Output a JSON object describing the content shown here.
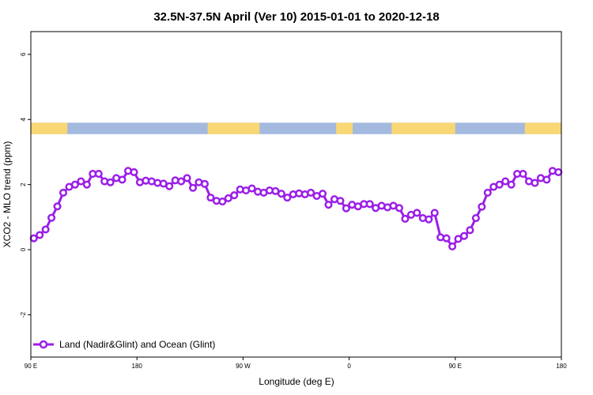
{
  "chart_data": {
    "type": "line",
    "title": "32.5N-37.5N April (Ver 10)   2015-01-01 to 2020-12-18",
    "xlabel": "Longitude (deg E)",
    "ylabel": "XCO2 - MLO trend (ppm)",
    "x_ticks": [
      {
        "value": 90,
        "label": "90 E"
      },
      {
        "value": 180,
        "label": "180"
      },
      {
        "value": 270,
        "label": "90 W"
      },
      {
        "value": 360,
        "label": "0"
      },
      {
        "value": 450,
        "label": "90 E"
      },
      {
        "value": 540,
        "label": "180"
      }
    ],
    "y_ticks": [
      {
        "value": -2,
        "label": "-2"
      },
      {
        "value": 0,
        "label": "0"
      },
      {
        "value": 2,
        "label": "2"
      },
      {
        "value": 4,
        "label": "4"
      },
      {
        "value": 6,
        "label": "6"
      }
    ],
    "xlim": [
      90,
      540
    ],
    "ylim": [
      -3.3,
      6.7
    ],
    "legend": {
      "position": "bottom-left",
      "label": "Land (Nadir&Glint) and Ocean (Glint)"
    },
    "colors": {
      "series": "#9b1fe8",
      "land": "#f9d775",
      "ocean": "#a3b9de"
    },
    "land_ocean_strip": {
      "y_range": [
        3.55,
        3.9
      ],
      "land_segments": [
        [
          90,
          121
        ],
        [
          240,
          284
        ],
        [
          349,
          363
        ],
        [
          396,
          450
        ],
        [
          509,
          540
        ]
      ]
    },
    "series": [
      {
        "name": "Land (Nadir&Glint) and Ocean (Glint)",
        "x": [
          92.5,
          97.5,
          102.5,
          107.5,
          112.5,
          117.5,
          122.5,
          127.5,
          132.5,
          137.5,
          142.5,
          147.5,
          152.5,
          157.5,
          162.5,
          167.5,
          172.5,
          177.5,
          182.5,
          187.5,
          192.5,
          197.5,
          202.5,
          207.5,
          212.5,
          217.5,
          222.5,
          227.5,
          232.5,
          237.5,
          242.5,
          247.5,
          252.5,
          257.5,
          262.5,
          267.5,
          272.5,
          277.5,
          282.5,
          287.5,
          292.5,
          297.5,
          302.5,
          307.5,
          312.5,
          317.5,
          322.5,
          327.5,
          332.5,
          337.5,
          342.5,
          347.5,
          352.5,
          357.5,
          362.5,
          367.5,
          372.5,
          377.5,
          382.5,
          387.5,
          392.5,
          397.5,
          402.5,
          407.5,
          412.5,
          417.5,
          422.5,
          427.5,
          432.5,
          437.5,
          442.5,
          447.5,
          452.5,
          457.5,
          462.5,
          467.5,
          472.5,
          477.5,
          482.5,
          487.5,
          492.5,
          497.5,
          502.5,
          507.5,
          512.5,
          517.5,
          522.5,
          527.5,
          532.5,
          537.5
        ],
        "values": [
          0.35,
          0.45,
          0.62,
          0.98,
          1.33,
          1.75,
          1.93,
          2.0,
          2.1,
          2.0,
          2.33,
          2.33,
          2.1,
          2.07,
          2.2,
          2.15,
          2.42,
          2.38,
          2.07,
          2.12,
          2.1,
          2.05,
          2.03,
          1.95,
          2.13,
          2.1,
          2.2,
          1.9,
          2.07,
          2.02,
          1.6,
          1.5,
          1.48,
          1.58,
          1.67,
          1.85,
          1.82,
          1.88,
          1.78,
          1.75,
          1.82,
          1.8,
          1.72,
          1.6,
          1.7,
          1.73,
          1.7,
          1.75,
          1.65,
          1.72,
          1.38,
          1.55,
          1.5,
          1.27,
          1.38,
          1.33,
          1.4,
          1.4,
          1.28,
          1.35,
          1.3,
          1.35,
          1.28,
          0.95,
          1.07,
          1.13,
          0.97,
          0.93,
          1.13,
          0.38,
          0.35,
          0.1,
          0.33,
          0.42,
          0.6,
          0.97,
          1.32,
          1.75,
          1.93,
          2.0,
          2.1,
          2.0,
          2.33,
          2.33,
          2.1,
          2.05,
          2.2,
          2.15,
          2.42,
          2.38
        ]
      }
    ]
  }
}
